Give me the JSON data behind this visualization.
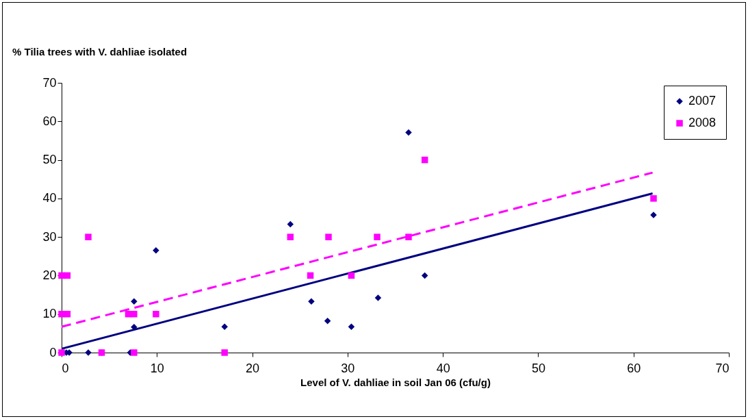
{
  "chart_data": {
    "type": "scatter",
    "ylabel": "% Tilia trees with V. dahliae isolated",
    "xlabel": "Level of V. dahliae in soil Jan 06 (cfu/g)",
    "xlim": [
      0,
      70
    ],
    "xticks": [
      0,
      10,
      20,
      30,
      40,
      50,
      60,
      70
    ],
    "ylim": [
      0,
      70
    ],
    "yticks": [
      0,
      10,
      20,
      30,
      40,
      50,
      60,
      70
    ],
    "grid": false,
    "legend": "top right",
    "series": [
      {
        "name": "2007",
        "color": "#000080",
        "marker": "diamond",
        "x": [
          0.5,
          0.8,
          2.8,
          4.2,
          7.2,
          7.6,
          7.6,
          9.9,
          17.1,
          24.0,
          26.2,
          27.9,
          30.4,
          33.2,
          36.4,
          38.1,
          62.1
        ],
        "values": [
          0,
          0,
          0,
          0,
          0,
          13.3,
          6.6,
          26.5,
          6.7,
          33.3,
          13.3,
          8.2,
          6.7,
          14.2,
          57.1,
          20.0,
          35.7
        ]
      },
      {
        "name": "2008",
        "color": "#ff00ff",
        "marker": "square",
        "x": [
          0,
          0,
          0.6,
          0,
          0.6,
          2.8,
          4.2,
          7.0,
          7.6,
          7.6,
          9.9,
          17.1,
          24.0,
          26.1,
          28.0,
          30.4,
          33.1,
          36.4,
          38.1,
          62.1
        ],
        "values": [
          0,
          20,
          20,
          10,
          10,
          30,
          0,
          10,
          10,
          0,
          10,
          0,
          30,
          20,
          30,
          20,
          30,
          30,
          50,
          40
        ]
      },
      {
        "type": "line",
        "color": "#000080",
        "line_style": "solid",
        "x": [
          0,
          62
        ],
        "values": [
          1.0,
          41.3
        ]
      },
      {
        "type": "line",
        "color": "#ff00ff",
        "line_style": "dashed",
        "x": [
          0,
          62
        ],
        "values": [
          6.7,
          46.7
        ]
      }
    ]
  }
}
